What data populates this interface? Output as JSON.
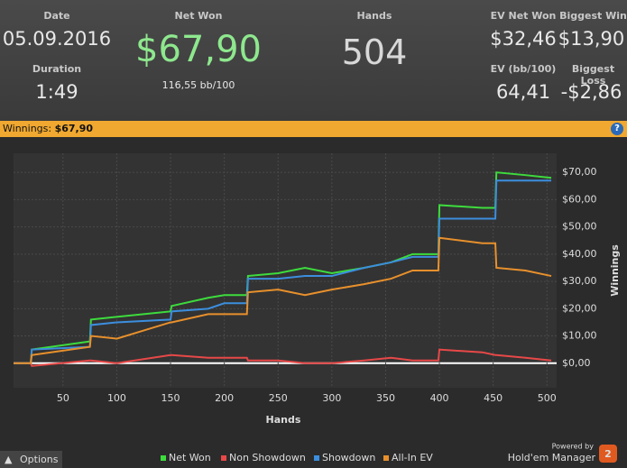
{
  "stats": {
    "date_label": "Date",
    "date": "05.09.2016",
    "duration_label": "Duration",
    "duration": "1:49",
    "net_won_label": "Net Won",
    "net_won": "$67,90",
    "bb100": "116,55 bb/100",
    "hands_label": "Hands",
    "hands": "504",
    "ev_net_won_label": "EV Net Won",
    "ev_net_won": "$32,46",
    "biggest_win_label": "Biggest Win",
    "biggest_win": "$13,90",
    "ev_bb_label": "EV (bb/100)",
    "ev_bb": "64,41",
    "biggest_loss_label": "Biggest Loss",
    "biggest_loss": "-$2,86"
  },
  "bar": {
    "label": "Winnings:",
    "value": "$67,90",
    "help": "?"
  },
  "footer": {
    "options": "Options",
    "powered": "Powered by",
    "brand": "Hold'em Manager",
    "version": "2"
  },
  "chart_data": {
    "type": "line",
    "x_label": "Hands",
    "y_label": "Winnings",
    "x": [
      4,
      20,
      21,
      75,
      76,
      100,
      150,
      151,
      185,
      200,
      221,
      222,
      250,
      275,
      300,
      330,
      355,
      375,
      399,
      400,
      440,
      452,
      453,
      480,
      504
    ],
    "series": [
      {
        "name": "Net Won",
        "color": "#3ddc3d",
        "values": [
          0,
          0,
          5,
          8,
          16,
          17,
          19,
          21,
          24,
          25,
          25,
          32,
          33,
          35,
          33,
          35,
          37,
          40,
          40,
          58,
          57,
          57,
          70,
          69,
          68
        ]
      },
      {
        "name": "Non Showdown",
        "color": "#e84848",
        "values": [
          0,
          0,
          -1,
          1,
          1,
          0,
          3,
          3,
          2,
          2,
          2,
          1,
          1,
          0,
          0,
          1,
          2,
          1,
          1,
          5,
          4,
          3,
          3,
          2,
          1
        ]
      },
      {
        "name": "Showdown",
        "color": "#3c8ede",
        "values": [
          0,
          0,
          5,
          6,
          14,
          15,
          16,
          19,
          20,
          22,
          22,
          31,
          31,
          32,
          32,
          35,
          37,
          39,
          39,
          53,
          53,
          53,
          67,
          67,
          67
        ]
      },
      {
        "name": "All-In EV",
        "color": "#e8902c",
        "values": [
          0,
          0,
          3,
          6,
          10,
          9,
          15,
          15,
          18,
          18,
          18,
          26,
          27,
          25,
          27,
          29,
          31,
          34,
          34,
          46,
          44,
          44,
          35,
          34,
          32
        ]
      }
    ],
    "xlim": [
      4,
      509
    ],
    "ylim": [
      -9,
      77
    ],
    "xticks": [
      50,
      100,
      150,
      200,
      250,
      300,
      350,
      400,
      450,
      500
    ],
    "yticks": [
      {
        "value": 0,
        "label": "$0,00"
      },
      {
        "value": 10,
        "label": "$10,00"
      },
      {
        "value": 20,
        "label": "$20,00"
      },
      {
        "value": 30,
        "label": "$30,00"
      },
      {
        "value": 40,
        "label": "$40,00"
      },
      {
        "value": 50,
        "label": "$50,00"
      },
      {
        "value": 60,
        "label": "$60,00"
      },
      {
        "value": 70,
        "label": "$70,00"
      }
    ],
    "grid": true
  }
}
